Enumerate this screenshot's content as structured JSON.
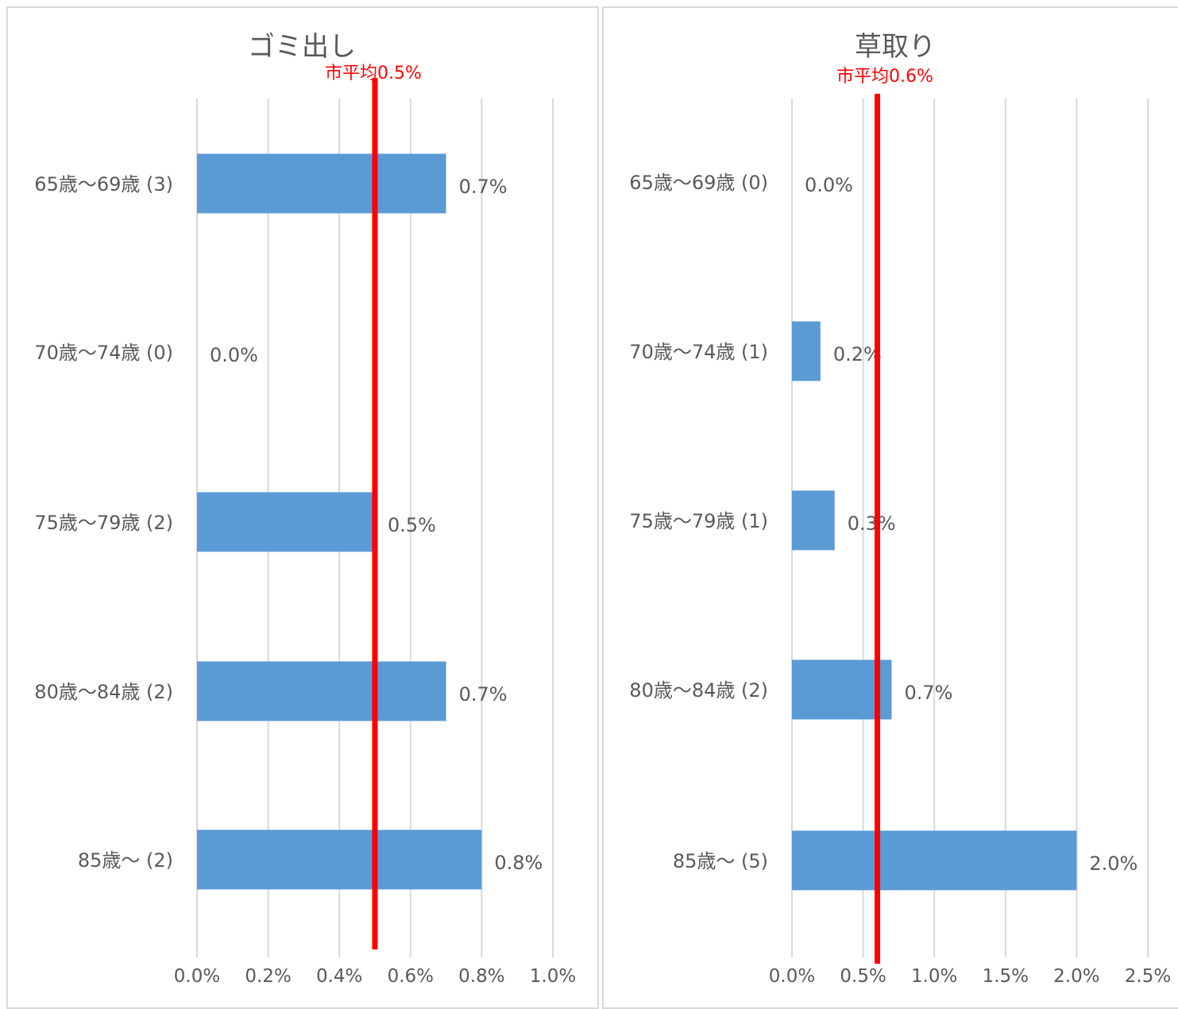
{
  "colors": {
    "bar": "#5b9bd5",
    "grid": "#d9d9d9",
    "average_line": "#ff0000",
    "text": "#595959"
  },
  "chart_data": [
    {
      "type": "bar",
      "orientation": "horizontal",
      "title": "ゴミ出し",
      "categories": [
        "65歳～69歳 (3)",
        "70歳～74歳 (0)",
        "75歳～79歳 (2)",
        "80歳～84歳 (2)",
        "85歳～ (2)"
      ],
      "values": [
        0.7,
        0.0,
        0.5,
        0.7,
        0.8
      ],
      "data_labels": [
        "0.7%",
        "0.0%",
        "0.5%",
        "0.7%",
        "0.8%"
      ],
      "xlim": [
        0,
        1.0
      ],
      "x_ticks": [
        0,
        0.2,
        0.4,
        0.6,
        0.8,
        1.0
      ],
      "x_tick_labels": [
        "0.0%",
        "0.2%",
        "0.4%",
        "0.6%",
        "0.8%",
        "1.0%"
      ],
      "grid": true,
      "average": {
        "value": 0.5,
        "label": "市平均0.5%"
      }
    },
    {
      "type": "bar",
      "orientation": "horizontal",
      "title": "草取り",
      "categories": [
        "65歳～69歳 (0)",
        "70歳～74歳 (1)",
        "75歳～79歳 (1)",
        "80歳～84歳 (2)",
        "85歳～ (5)"
      ],
      "values": [
        0.0,
        0.2,
        0.3,
        0.7,
        2.0
      ],
      "data_labels": [
        "0.0%",
        "0.2%",
        "0.3%",
        "0.7%",
        "2.0%"
      ],
      "xlim": [
        0,
        2.5
      ],
      "x_ticks": [
        0,
        0.5,
        1.0,
        1.5,
        2.0,
        2.5
      ],
      "x_tick_labels": [
        "0.0%",
        "0.5%",
        "1.0%",
        "1.5%",
        "2.0%",
        "2.5%"
      ],
      "grid": true,
      "average": {
        "value": 0.6,
        "label": "市平均0.6%"
      }
    }
  ]
}
